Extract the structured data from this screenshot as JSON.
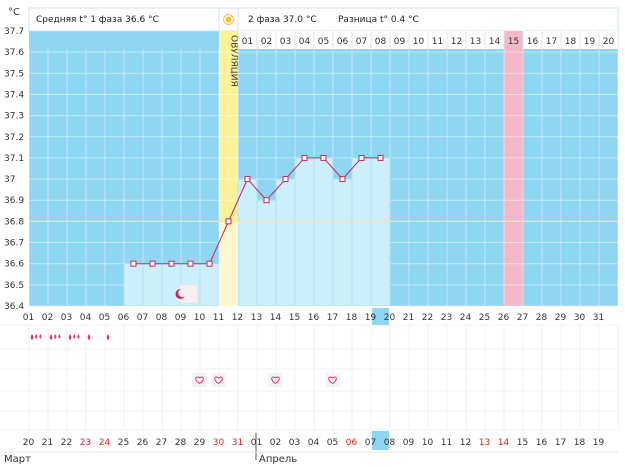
{
  "header": {
    "phase1": "Средняя t° 1 фаза 36.6 °C",
    "phase2": "2 фаза 37.0 °C",
    "diff": "Разница t° 0.4 °C"
  },
  "ovulation_label": "ОВУЛЯЦИЯ",
  "months": {
    "first": "Март",
    "second": "Апрель"
  },
  "colors": {
    "chart_bg": "#8fd6f3",
    "bar_fill": "#cdeefb",
    "line": "#c8265c",
    "ovulation": "#fdf29a",
    "highlight_day": "#f4b9c8",
    "coverline": "#f2f26a",
    "selected_day": "#8fd6f3"
  },
  "chart_data": {
    "type": "line",
    "ylabel": "°C",
    "ylim": [
      36.4,
      37.7
    ],
    "y_ticks": [
      "36.4",
      "36.5",
      "36.6",
      "36.7",
      "36.8",
      "36.9",
      "37",
      "37.1",
      "37.2",
      "37.3",
      "37.4",
      "37.5",
      "37.6",
      "37.7"
    ],
    "cycle_days": [
      "01",
      "02",
      "03",
      "04",
      "05",
      "06",
      "07",
      "08",
      "09",
      "10",
      "11",
      "12",
      "13",
      "14",
      "15",
      "16",
      "17",
      "18",
      "19",
      "20",
      "21",
      "22",
      "23",
      "24",
      "25",
      "26",
      "27",
      "28",
      "29",
      "30",
      "31"
    ],
    "phase2_days": [
      "01",
      "02",
      "03",
      "04",
      "05",
      "06",
      "07",
      "08",
      "09",
      "10",
      "11",
      "12",
      "13",
      "14",
      "15",
      "16",
      "17",
      "18",
      "19",
      "20"
    ],
    "ovulation_day_index": 10,
    "phase2_start_index": 11,
    "highlighted_phase2_index": 14,
    "selected_cycle_index": 18,
    "coverline": 36.8,
    "series": [
      {
        "values": [
          null,
          null,
          null,
          null,
          null,
          36.6,
          36.6,
          36.6,
          36.6,
          36.6,
          36.8,
          37.0,
          36.9,
          37.0,
          37.1,
          37.1,
          37.0,
          37.1,
          37.1,
          null,
          null,
          null,
          null,
          null,
          null,
          null,
          null,
          null,
          null,
          null,
          null
        ]
      }
    ],
    "calendar_dates": [
      "20",
      "21",
      "22",
      "23",
      "24",
      "25",
      "26",
      "27",
      "28",
      "29",
      "30",
      "31",
      "01",
      "02",
      "03",
      "04",
      "05",
      "06",
      "07",
      "08",
      "09",
      "10",
      "11",
      "12",
      "13",
      "14",
      "15",
      "16",
      "17",
      "18",
      "19"
    ],
    "weekend_indexes": [
      3,
      4,
      10,
      11,
      17,
      24,
      25
    ],
    "selected_calendar_index": 18,
    "month_break_index": 12,
    "symbols": {
      "moon_day_index": 8,
      "flow_days": [
        0,
        1,
        2,
        3,
        4
      ],
      "flow_levels": [
        3,
        3,
        3,
        1,
        1
      ],
      "heart_day_indexes": [
        9,
        10,
        13,
        16
      ]
    }
  }
}
